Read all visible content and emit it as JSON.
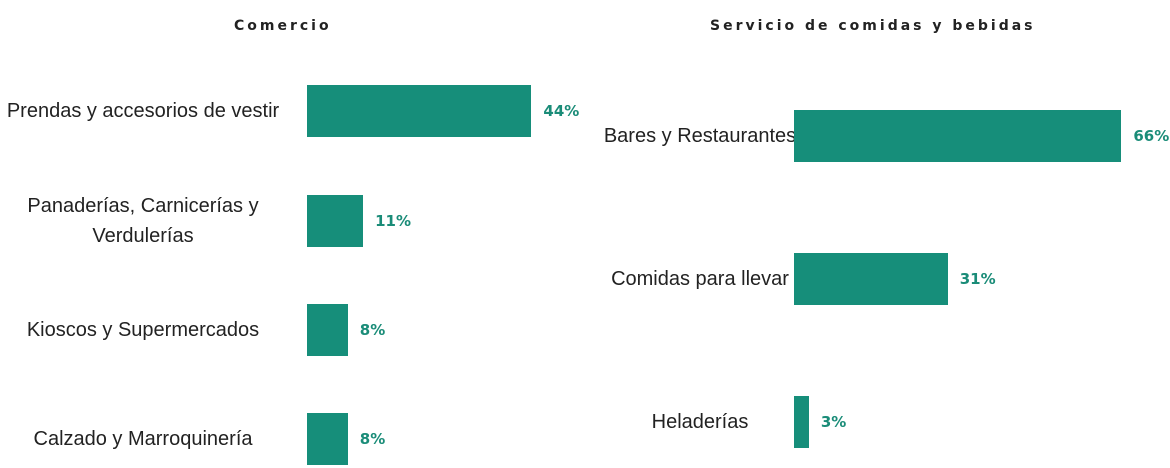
{
  "chart_data": [
    {
      "type": "bar",
      "orientation": "horizontal",
      "title": "Comercio",
      "categories": [
        "Prendas y accesorios de vestir",
        "Panaderías, Carnicerías y Verdulerías",
        "Kioscos y Supermercados",
        "Calzado y Marroquinería"
      ],
      "values": [
        44,
        11,
        8,
        8
      ],
      "value_labels": [
        "44%",
        "11%",
        "8%",
        "8%"
      ],
      "color": "#168e7a"
    },
    {
      "type": "bar",
      "orientation": "horizontal",
      "title": "Servicio de comidas y bebidas",
      "categories": [
        "Bares y Restaurantes",
        "Comidas para llevar",
        "Heladerías"
      ],
      "values": [
        66,
        31,
        3
      ],
      "value_labels": [
        "66%",
        "31%",
        "3%"
      ],
      "color": "#168e7a"
    }
  ]
}
